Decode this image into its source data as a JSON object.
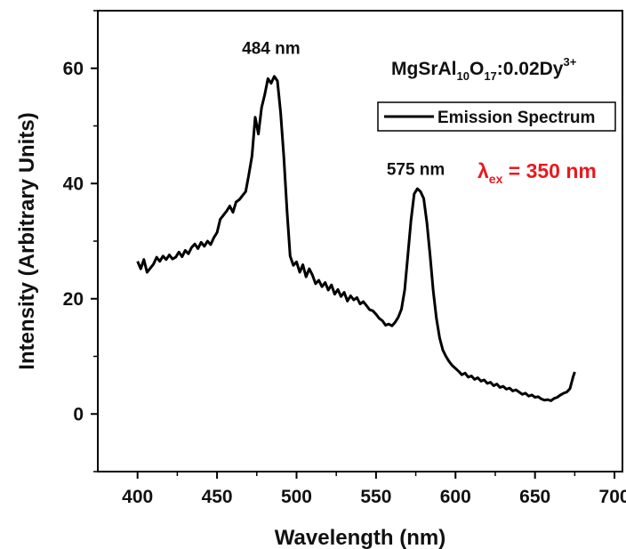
{
  "chart_data": {
    "type": "line",
    "xlabel": "Wavelength (nm)",
    "ylabel": "Intensity (Arbitrary Units)",
    "xlim": [
      375,
      705
    ],
    "ylim": [
      -10,
      70
    ],
    "xticks": [
      400,
      450,
      500,
      550,
      600,
      650,
      700
    ],
    "yticks": [
      0,
      20,
      40,
      60
    ],
    "grid": false,
    "legend_position": "top-right",
    "series": [
      {
        "name": "Emission Spectrum",
        "color": "#000000",
        "x": [
          400,
          402,
          404,
          406,
          408,
          410,
          412,
          414,
          416,
          418,
          420,
          422,
          424,
          426,
          428,
          430,
          432,
          434,
          436,
          438,
          440,
          442,
          444,
          446,
          448,
          450,
          452,
          454,
          456,
          458,
          460,
          462,
          464,
          466,
          468,
          470,
          472,
          474,
          476,
          478,
          480,
          482,
          484,
          486,
          488,
          490,
          492,
          494,
          496,
          498,
          500,
          502,
          504,
          506,
          508,
          510,
          512,
          514,
          516,
          518,
          520,
          522,
          524,
          526,
          528,
          530,
          532,
          534,
          536,
          538,
          540,
          542,
          544,
          546,
          548,
          550,
          552,
          554,
          556,
          558,
          560,
          562,
          564,
          566,
          568,
          570,
          572,
          574,
          576,
          578,
          580,
          582,
          584,
          586,
          588,
          590,
          592,
          594,
          596,
          598,
          600,
          602,
          604,
          606,
          608,
          610,
          612,
          614,
          616,
          618,
          620,
          622,
          624,
          626,
          628,
          630,
          632,
          634,
          636,
          638,
          640,
          642,
          644,
          646,
          648,
          650,
          652,
          654,
          656,
          658,
          660,
          662,
          664,
          666,
          668,
          670,
          672,
          674,
          675
        ],
        "values": [
          26.5,
          25.2,
          26.8,
          24.6,
          25.3,
          26.0,
          27.2,
          26.5,
          27.4,
          26.8,
          27.6,
          26.9,
          27.2,
          28.1,
          27.3,
          28.4,
          27.8,
          28.9,
          29.5,
          28.7,
          29.8,
          29.1,
          30.0,
          29.4,
          30.6,
          31.5,
          33.8,
          34.5,
          35.2,
          36.1,
          35.0,
          36.8,
          37.2,
          37.9,
          38.6,
          41.5,
          44.8,
          51.5,
          48.6,
          53.2,
          55.4,
          58.2,
          57.4,
          58.6,
          57.8,
          52.3,
          44.6,
          35.2,
          27.4,
          25.8,
          26.4,
          24.6,
          25.9,
          23.8,
          25.2,
          24.1,
          22.6,
          23.2,
          22.1,
          22.8,
          21.5,
          22.4,
          20.8,
          21.6,
          20.4,
          21.1,
          19.6,
          20.5,
          19.8,
          20.2,
          19.1,
          19.5,
          18.8,
          18.1,
          17.9,
          17.3,
          16.6,
          16.2,
          15.4,
          15.6,
          15.3,
          15.9,
          16.8,
          18.2,
          21.5,
          27.4,
          33.6,
          38.2,
          39.1,
          38.6,
          37.4,
          33.2,
          27.5,
          21.4,
          16.6,
          13.2,
          11.1,
          10.0,
          9.1,
          8.4,
          7.9,
          7.4,
          6.8,
          7.1,
          6.4,
          6.6,
          6.0,
          6.3,
          5.7,
          5.9,
          5.3,
          5.5,
          4.9,
          5.2,
          4.6,
          4.8,
          4.3,
          4.5,
          4.0,
          4.2,
          3.8,
          3.4,
          3.6,
          3.1,
          3.3,
          2.9,
          3.0,
          2.6,
          2.4,
          2.5,
          2.3,
          2.7,
          2.9,
          3.3,
          3.6,
          3.8,
          4.4,
          6.5,
          7.3
        ]
      }
    ],
    "annotations": [
      "484 nm",
      "575 nm"
    ]
  },
  "formula": {
    "base1": "MgSrAl",
    "sub1": "10",
    "base2": "O",
    "sub2": "17",
    "base3": ":0.02Dy",
    "sup": "3+"
  },
  "excitation": {
    "symbol": "λ",
    "sub": "ex",
    "rest": " = 350 nm",
    "color": "#e8191e"
  }
}
